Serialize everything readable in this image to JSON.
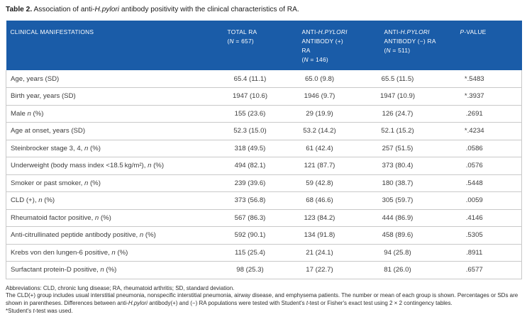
{
  "colors": {
    "header_bg": "#1a5ca8",
    "header_text": "#ffffff",
    "row_border": "#c9c9c9",
    "body_text": "#3c3c3c"
  },
  "title": {
    "parts": [
      {
        "t": "Table 2.",
        "s": "b"
      },
      {
        "t": "  Association of anti-"
      },
      {
        "t": "H.pylori",
        "s": "i"
      },
      {
        "t": " antibody positivity with the clinical characteristics of RA."
      }
    ]
  },
  "table": {
    "header": {
      "columns": [
        {
          "id": "clinical-manifestations",
          "lines": [
            [
              {
                "t": "CLINICAL MANIFESTATIONS"
              }
            ]
          ]
        },
        {
          "id": "total-ra",
          "lines": [
            [
              {
                "t": "TOTAL RA"
              }
            ],
            [
              {
                "t": "("
              },
              {
                "t": "N",
                "s": "i"
              },
              {
                "t": " = 657)"
              }
            ]
          ]
        },
        {
          "id": "antibody-positive-ra",
          "lines": [
            [
              {
                "t": "ANTI-"
              },
              {
                "t": "H.PYLORI",
                "s": "i"
              }
            ],
            [
              {
                "t": "ANTIBODY (+) RA"
              }
            ],
            [
              {
                "t": "("
              },
              {
                "t": "N",
                "s": "i"
              },
              {
                "t": " = 146)"
              }
            ]
          ]
        },
        {
          "id": "antibody-negative-ra",
          "lines": [
            [
              {
                "t": "ANTI-"
              },
              {
                "t": "H.PYLORI",
                "s": "i"
              }
            ],
            [
              {
                "t": "ANTIBODY (−) RA"
              }
            ],
            [
              {
                "t": "("
              },
              {
                "t": "N",
                "s": "i"
              },
              {
                "t": " = 511)"
              }
            ]
          ]
        },
        {
          "id": "p-value",
          "lines": [
            [
              {
                "t": "P",
                "s": "i"
              },
              {
                "t": "-VALUE"
              }
            ]
          ]
        }
      ]
    },
    "rows": [
      {
        "label": [
          {
            "t": "Age, years (SD)"
          }
        ],
        "total": "65.4 (11.1)",
        "positive": "65.0 (9.8)",
        "negative": "65.5 (11.5)",
        "p": "*.5483"
      },
      {
        "label": [
          {
            "t": "Birth year, years (SD)"
          }
        ],
        "total": "1947 (10.6)",
        "positive": "1946 (9.7)",
        "negative": "1947 (10.9)",
        "p": "*.3937"
      },
      {
        "label": [
          {
            "t": "Male "
          },
          {
            "t": "n",
            "s": "i"
          },
          {
            "t": " (%)"
          }
        ],
        "total": "155 (23.6)",
        "positive": "29 (19.9)",
        "negative": "126 (24.7)",
        "p": ".2691"
      },
      {
        "label": [
          {
            "t": "Age at onset, years (SD)"
          }
        ],
        "total": "52.3 (15.0)",
        "positive": "53.2 (14.2)",
        "negative": "52.1 (15.2)",
        "p": "*.4234"
      },
      {
        "label": [
          {
            "t": "Steinbrocker stage 3, 4, "
          },
          {
            "t": "n",
            "s": "i"
          },
          {
            "t": " (%)"
          }
        ],
        "total": "318 (49.5)",
        "positive": "61 (42.4)",
        "negative": "257 (51.5)",
        "p": ".0586"
      },
      {
        "label": [
          {
            "t": "Underweight (body mass index <18.5 kg/m²), "
          },
          {
            "t": "n",
            "s": "i"
          },
          {
            "t": " (%)"
          }
        ],
        "total": "494 (82.1)",
        "positive": "121 (87.7)",
        "negative": "373 (80.4)",
        "p": ".0576"
      },
      {
        "label": [
          {
            "t": "Smoker or past smoker, "
          },
          {
            "t": "n",
            "s": "i"
          },
          {
            "t": " (%)"
          }
        ],
        "total": "239 (39.6)",
        "positive": "59 (42.8)",
        "negative": "180 (38.7)",
        "p": ".5448"
      },
      {
        "label": [
          {
            "t": "CLD (+), "
          },
          {
            "t": "n",
            "s": "i"
          },
          {
            "t": " (%)"
          }
        ],
        "total": "373 (56.8)",
        "positive": "68 (46.6)",
        "negative": "305 (59.7)",
        "p": ".0059"
      },
      {
        "label": [
          {
            "t": "Rheumatoid factor positive, "
          },
          {
            "t": "n",
            "s": "i"
          },
          {
            "t": " (%)"
          }
        ],
        "total": "567 (86.3)",
        "positive": "123 (84.2)",
        "negative": "444 (86.9)",
        "p": ".4146"
      },
      {
        "label": [
          {
            "t": "Anti-citrullinated peptide antibody positive, "
          },
          {
            "t": "n",
            "s": "i"
          },
          {
            "t": " (%)"
          }
        ],
        "total": "592 (90.1)",
        "positive": "134 (91.8)",
        "negative": "458 (89.6)",
        "p": ".5305"
      },
      {
        "label": [
          {
            "t": "Krebs von den lungen-6 positive, "
          },
          {
            "t": "n",
            "s": "i"
          },
          {
            "t": " (%)"
          }
        ],
        "total": "115 (25.4)",
        "positive": "21 (24.1)",
        "negative": "94 (25.8)",
        "p": ".8911"
      },
      {
        "label": [
          {
            "t": "Surfactant protein-D positive, "
          },
          {
            "t": "n",
            "s": "i"
          },
          {
            "t": " (%)"
          }
        ],
        "total": "98 (25.3)",
        "positive": "17 (22.7)",
        "negative": "81 (26.0)",
        "p": ".6577"
      }
    ]
  },
  "footnotes": [
    {
      "parts": [
        {
          "t": "Abbreviations: CLD, chronic lung disease; RA, rheumatoid arthritis; SD, standard deviation."
        }
      ]
    },
    {
      "parts": [
        {
          "t": "The CLD(+) group includes usual interstitial pneumonia, nonspecific interstitial pneumonia, airway disease, and emphysema patients. The number or mean of each group is shown. Percentages or SDs are shown in parentheses. Differences between anti-"
        },
        {
          "t": "H.pylori",
          "s": "i"
        },
        {
          "t": " antibody(+) and (−) RA populations were tested with Student's "
        },
        {
          "t": "t",
          "s": "i"
        },
        {
          "t": "-test or Fisher's exact test using 2 × 2 contingency tables."
        }
      ]
    },
    {
      "parts": [
        {
          "t": "*Student's "
        },
        {
          "t": "t",
          "s": "i"
        },
        {
          "t": "-test was used."
        }
      ]
    }
  ]
}
